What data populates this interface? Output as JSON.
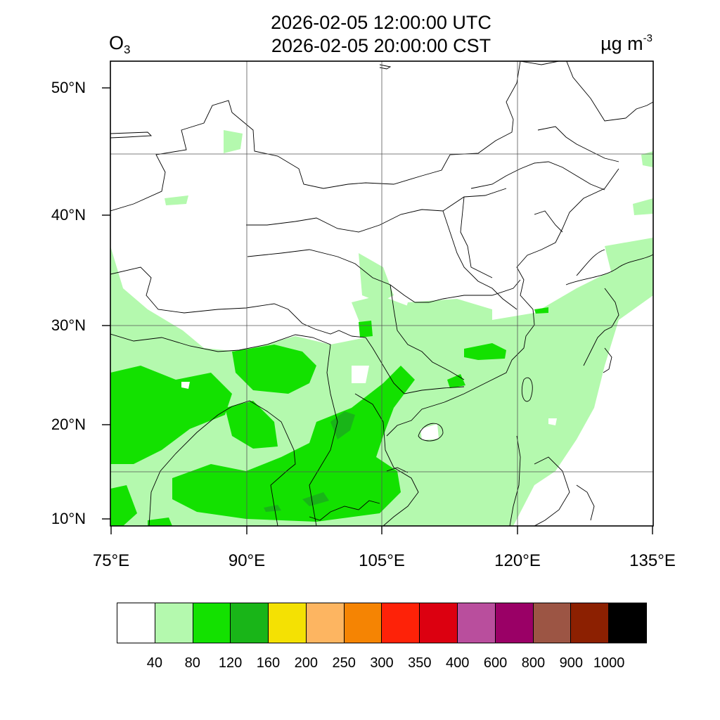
{
  "header": {
    "title_utc": "2026-02-05 12:00:00 UTC",
    "title_cst": "2026-02-05 20:00:00 CST",
    "species_main": "O",
    "species_sub": "3",
    "units_main": "µg m",
    "units_sup": "-3"
  },
  "map": {
    "lat_labels": [
      "50°N",
      "40°N",
      "30°N",
      "20°N",
      "10°N"
    ],
    "lon_labels": [
      "75°E",
      "90°E",
      "105°E",
      "120°E",
      "135°E"
    ]
  },
  "legend": {
    "labels": [
      "40",
      "80",
      "120",
      "160",
      "200",
      "250",
      "300",
      "350",
      "400",
      "600",
      "800",
      "900",
      "1000"
    ],
    "colors": [
      "#ffffff",
      "#b4f9ae",
      "#13e100",
      "#19b518",
      "#f4e103",
      "#fdb561",
      "#f58403",
      "#fe2208",
      "#dc0010",
      "#b94e9d",
      "#9a0066",
      "#9c5544",
      "#8c2001",
      "#000000"
    ]
  }
}
